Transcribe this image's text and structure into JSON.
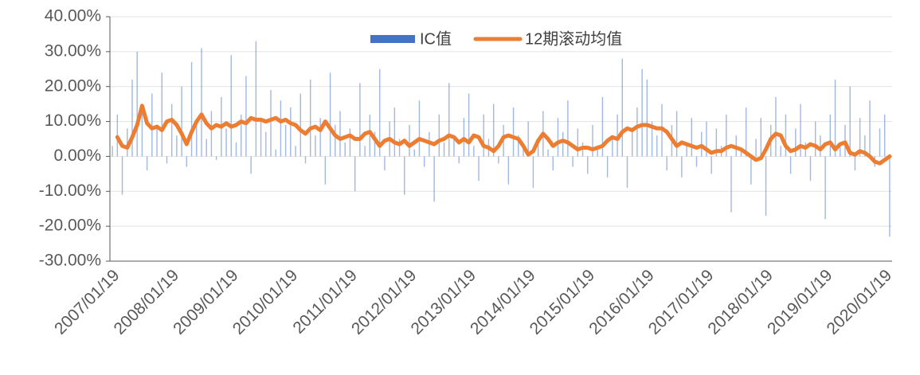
{
  "chart_data": {
    "type": "bar",
    "categories": [
      "2007/01/19",
      null,
      null,
      null,
      null,
      null,
      null,
      null,
      null,
      null,
      null,
      null,
      "2008/01/19",
      null,
      null,
      null,
      null,
      null,
      null,
      null,
      null,
      null,
      null,
      null,
      "2009/01/19",
      null,
      null,
      null,
      null,
      null,
      null,
      null,
      null,
      null,
      null,
      null,
      "2010/01/19",
      null,
      null,
      null,
      null,
      null,
      null,
      null,
      null,
      null,
      null,
      null,
      "2011/01/19",
      null,
      null,
      null,
      null,
      null,
      null,
      null,
      null,
      null,
      null,
      null,
      "2012/01/19",
      null,
      null,
      null,
      null,
      null,
      null,
      null,
      null,
      null,
      null,
      null,
      "2013/01/19",
      null,
      null,
      null,
      null,
      null,
      null,
      null,
      null,
      null,
      null,
      null,
      "2014/01/19",
      null,
      null,
      null,
      null,
      null,
      null,
      null,
      null,
      null,
      null,
      null,
      "2015/01/19",
      null,
      null,
      null,
      null,
      null,
      null,
      null,
      null,
      null,
      null,
      null,
      "2016/01/19",
      null,
      null,
      null,
      null,
      null,
      null,
      null,
      null,
      null,
      null,
      null,
      "2017/01/19",
      null,
      null,
      null,
      null,
      null,
      null,
      null,
      null,
      null,
      null,
      null,
      "2018/01/19",
      null,
      null,
      null,
      null,
      null,
      null,
      null,
      null,
      null,
      null,
      null,
      "2019/01/19",
      null,
      null,
      null,
      null,
      null,
      null,
      null,
      null,
      null,
      null,
      null,
      "2020/01/19",
      null
    ],
    "series": [
      {
        "name": "IC值",
        "type": "bar",
        "color": "#4472c4",
        "values": [
          3,
          12,
          -11,
          8,
          22,
          30,
          14,
          -4,
          18,
          9,
          24,
          -2,
          15,
          6,
          20,
          -3,
          27,
          10,
          31,
          5,
          13,
          -1,
          17,
          8,
          29,
          4,
          12,
          23,
          -5,
          33,
          11,
          7,
          19,
          2,
          16,
          9,
          14,
          3,
          18,
          -2,
          22,
          6,
          11,
          -8,
          24,
          9,
          13,
          4,
          8,
          -10,
          21,
          3,
          12,
          7,
          25,
          -4,
          10,
          14,
          5,
          -11,
          9,
          2,
          16,
          -3,
          7,
          -13,
          12,
          4,
          21,
          6,
          -2,
          11,
          18,
          3,
          -7,
          12,
          5,
          15,
          -2,
          9,
          -8,
          14,
          6,
          3,
          10,
          -9,
          5,
          13,
          2,
          -4,
          11,
          7,
          16,
          -3,
          8,
          4,
          -5,
          9,
          3,
          17,
          -6,
          6,
          12,
          28,
          -9,
          8,
          14,
          25,
          22,
          10,
          6,
          15,
          -4,
          9,
          13,
          -6,
          4,
          11,
          -3,
          7,
          10,
          -5,
          8,
          3,
          12,
          -16,
          6,
          2,
          14,
          -8,
          5,
          11,
          -17,
          9,
          17,
          3,
          12,
          -5,
          8,
          15,
          4,
          -7,
          10,
          6,
          -18,
          12,
          22,
          3,
          9,
          20,
          -4,
          11,
          6,
          16,
          -3,
          8,
          12,
          -23
        ]
      },
      {
        "name": "12期滚动均值",
        "type": "line",
        "color": "#ed7d31",
        "values": [
          null,
          5.5,
          3,
          2.5,
          5.5,
          9,
          14.5,
          9.5,
          8,
          8.5,
          7.5,
          10,
          10.5,
          9,
          6.5,
          3.5,
          7,
          10,
          12,
          9.5,
          8,
          9,
          8.5,
          9.5,
          8.5,
          9,
          10,
          9.5,
          11,
          10.5,
          10.5,
          10,
          10.5,
          11,
          10,
          10.5,
          9.5,
          9,
          7.5,
          6.5,
          8,
          8.5,
          7.5,
          10,
          8,
          6,
          5,
          5.5,
          6,
          5,
          5,
          6.5,
          7,
          5,
          3,
          4.5,
          5,
          4,
          3.5,
          4.5,
          3,
          4,
          5,
          4.5,
          4,
          3.5,
          4.5,
          5,
          6,
          5.5,
          4,
          5,
          4,
          6,
          5.5,
          3,
          2.5,
          1.5,
          3,
          5.5,
          6,
          5.5,
          5,
          3,
          0.5,
          1.5,
          4.5,
          6.5,
          5,
          3,
          4,
          4.5,
          4,
          3,
          2,
          2.5,
          2.5,
          2,
          2.5,
          3,
          4.5,
          5.5,
          5,
          7,
          8,
          7.5,
          8.5,
          9,
          9,
          8.5,
          8,
          8,
          7,
          5,
          3,
          4,
          3.5,
          3,
          2.5,
          3,
          2,
          1,
          1.5,
          1.5,
          2.5,
          3,
          2.5,
          2,
          1,
          0,
          -1,
          -0.5,
          2,
          5,
          6.5,
          6,
          3,
          1.5,
          2,
          3,
          2.5,
          3.5,
          3,
          2,
          3.5,
          4,
          2,
          3.5,
          4,
          1,
          0.5,
          1.5,
          1,
          0,
          -1.5,
          -2,
          -1,
          0
        ]
      }
    ],
    "ylim": [
      -30,
      40
    ],
    "yticks": [
      {
        "value": -30,
        "label": "-30.00%"
      },
      {
        "value": -20,
        "label": "-20.00%"
      },
      {
        "value": -10,
        "label": "-10.00%"
      },
      {
        "value": 0,
        "label": "0.00%"
      },
      {
        "value": 10,
        "label": "10.00%"
      },
      {
        "value": 20,
        "label": "20.00%"
      },
      {
        "value": 30,
        "label": "30.00%"
      },
      {
        "value": 40,
        "label": "40.00%"
      }
    ],
    "grid": true,
    "legend": "top"
  }
}
